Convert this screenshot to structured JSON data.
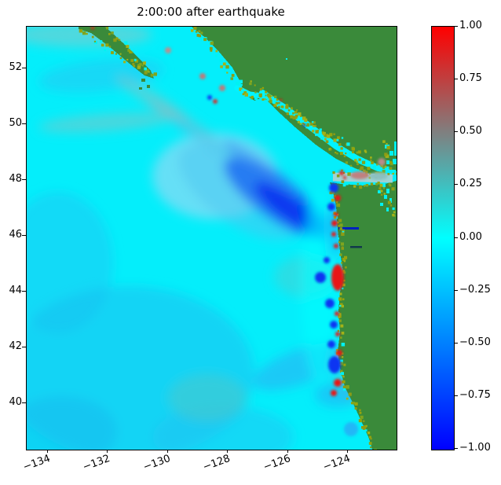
{
  "figure": {
    "title": "2:00:00 after earthquake"
  },
  "axes": {
    "x_ticks": [
      "−134",
      "−132",
      "−130",
      "−128",
      "−126",
      "−124"
    ],
    "y_ticks": [
      "52",
      "50",
      "48",
      "46",
      "44",
      "42",
      "40"
    ]
  },
  "colorbar": {
    "tick_labels": [
      "1.00",
      "0.75",
      "0.50",
      "0.25",
      "0.00",
      "−0.25",
      "−0.50",
      "−0.75",
      "−1.00"
    ],
    "min": -1.0,
    "max": 1.0,
    "color_low": "#0000ff",
    "color_zero": "#00ffff",
    "color_high": "#ff0000"
  },
  "chart_data": {
    "type": "heatmap",
    "title": "2:00:00 after earthquake",
    "x_ticks": [
      -134,
      -132,
      -130,
      -128,
      -126,
      -124
    ],
    "y_ticks": [
      52,
      50,
      48,
      46,
      44,
      42,
      40
    ],
    "x_range_estimate": [
      -134.7,
      -122.4
    ],
    "y_range_estimate": [
      38.3,
      53.5
    ],
    "value_range": [
      -1.0,
      1.0
    ],
    "colormap_stops": [
      {
        "value": -1.0,
        "color": "#0000ff"
      },
      {
        "value": 0.0,
        "color": "#00ffff"
      },
      {
        "value": 0.5,
        "color": "#808080"
      },
      {
        "value": 1.0,
        "color": "#ff0000"
      }
    ],
    "land_color": "#3a8a3a",
    "shoreline_cell_color": "#99a816",
    "grid": false,
    "legend_position": "right-colorbar",
    "visible_features": [
      "green land: Haida Gwaii strip, BC mainland, Vancouver Island, WA/OR/CA coast",
      "deep blue wave trough arc offshore southwest Vancouver Island",
      "alternating red (+) and blue (−) wave spots trapped along WA/OR/CA coast",
      "large red patch near coast at ~44.5N, blue patch near ~41.5N",
      "gray/mauve positive reflections in Strait of Juan de Fuca and near Haida Gwaii",
      "cyan (≈0) open ocean with light blue (≈−0.2) swaths southwest",
      "dark navy line of Columbia River entering land near 46.2N"
    ]
  }
}
